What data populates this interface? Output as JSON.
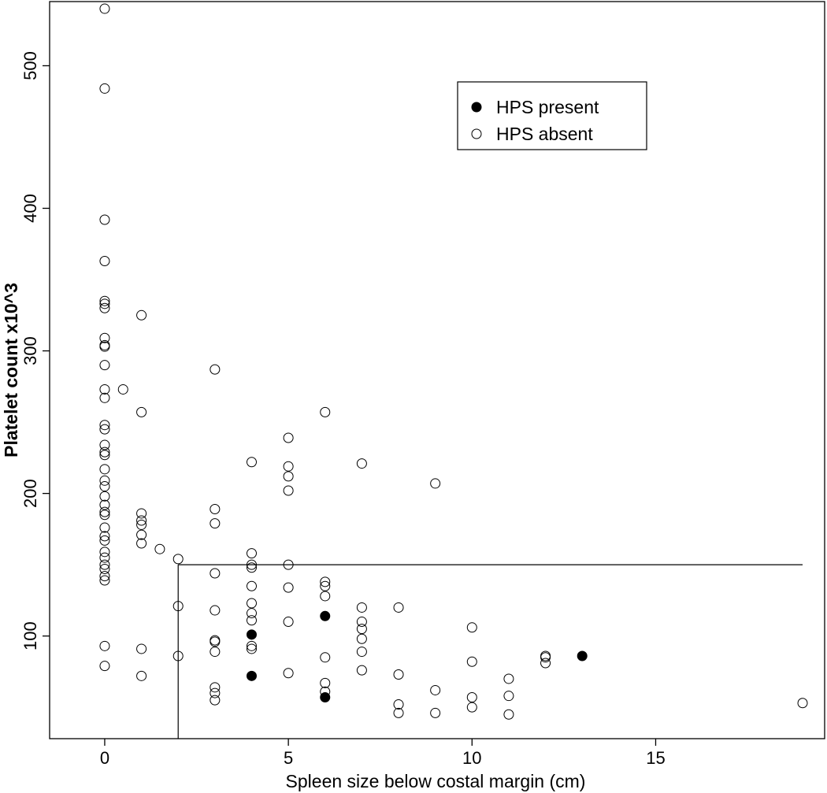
{
  "chart_data": {
    "type": "scatter",
    "xlabel": "Spleen size below costal margin (cm)",
    "ylabel": "Platelet count x10^3",
    "xlim": [
      -1.5,
      19.6
    ],
    "ylim": [
      28,
      545
    ],
    "x_ticks": [
      0,
      5,
      10,
      15
    ],
    "y_ticks": [
      100,
      200,
      300,
      400,
      500
    ],
    "grid": false,
    "legend": {
      "position": "top-right"
    },
    "reference_lines": [
      {
        "type": "horizontal",
        "y": 150,
        "x_from": 2,
        "x_to": 19
      },
      {
        "type": "vertical",
        "x": 2,
        "y_from": 28,
        "y_to": 150
      }
    ],
    "series": [
      {
        "name": "HPS present",
        "marker": "filled-circle",
        "points": [
          [
            4,
            101
          ],
          [
            4,
            72
          ],
          [
            6,
            114
          ],
          [
            6,
            57
          ],
          [
            13,
            86
          ]
        ]
      },
      {
        "name": "HPS absent",
        "marker": "open-circle",
        "points": [
          [
            0,
            540
          ],
          [
            0,
            484
          ],
          [
            0,
            392
          ],
          [
            0,
            363
          ],
          [
            0,
            335
          ],
          [
            0,
            333
          ],
          [
            0,
            330
          ],
          [
            0,
            309
          ],
          [
            0,
            304
          ],
          [
            0,
            303
          ],
          [
            0,
            290
          ],
          [
            0,
            273
          ],
          [
            0,
            267
          ],
          [
            0,
            248
          ],
          [
            0,
            245
          ],
          [
            0,
            234
          ],
          [
            0,
            229
          ],
          [
            0,
            227
          ],
          [
            0,
            217
          ],
          [
            0,
            209
          ],
          [
            0,
            205
          ],
          [
            0,
            198
          ],
          [
            0,
            192
          ],
          [
            0,
            187
          ],
          [
            0,
            185
          ],
          [
            0,
            176
          ],
          [
            0,
            170
          ],
          [
            0,
            167
          ],
          [
            0,
            159
          ],
          [
            0,
            155
          ],
          [
            0,
            150
          ],
          [
            0,
            147
          ],
          [
            0,
            142
          ],
          [
            0,
            139
          ],
          [
            0,
            93
          ],
          [
            0,
            79
          ],
          [
            0.5,
            273
          ],
          [
            1,
            325
          ],
          [
            1,
            257
          ],
          [
            1,
            186
          ],
          [
            1,
            181
          ],
          [
            1,
            178
          ],
          [
            1,
            171
          ],
          [
            1,
            165
          ],
          [
            1,
            91
          ],
          [
            1,
            72
          ],
          [
            1.5,
            161
          ],
          [
            2,
            154
          ],
          [
            2,
            121
          ],
          [
            2,
            86
          ],
          [
            3,
            287
          ],
          [
            3,
            189
          ],
          [
            3,
            179
          ],
          [
            3,
            144
          ],
          [
            3,
            118
          ],
          [
            3,
            97
          ],
          [
            3,
            96
          ],
          [
            3,
            89
          ],
          [
            3,
            64
          ],
          [
            3,
            60
          ],
          [
            3,
            55
          ],
          [
            4,
            222
          ],
          [
            4,
            158
          ],
          [
            4,
            150
          ],
          [
            4,
            148
          ],
          [
            4,
            135
          ],
          [
            4,
            123
          ],
          [
            4,
            116
          ],
          [
            4,
            111
          ],
          [
            4,
            93
          ],
          [
            4,
            91
          ],
          [
            5,
            239
          ],
          [
            5,
            219
          ],
          [
            5,
            212
          ],
          [
            5,
            202
          ],
          [
            5,
            150
          ],
          [
            5,
            134
          ],
          [
            5,
            110
          ],
          [
            5,
            74
          ],
          [
            6,
            257
          ],
          [
            6,
            138
          ],
          [
            6,
            135
          ],
          [
            6,
            128
          ],
          [
            6,
            85
          ],
          [
            6,
            67
          ],
          [
            6,
            61
          ],
          [
            7,
            221
          ],
          [
            7,
            120
          ],
          [
            7,
            110
          ],
          [
            7,
            105
          ],
          [
            7,
            98
          ],
          [
            7,
            89
          ],
          [
            7,
            76
          ],
          [
            8,
            120
          ],
          [
            8,
            73
          ],
          [
            8,
            52
          ],
          [
            8,
            46
          ],
          [
            9,
            207
          ],
          [
            9,
            62
          ],
          [
            9,
            46
          ],
          [
            10,
            106
          ],
          [
            10,
            82
          ],
          [
            10,
            57
          ],
          [
            10,
            50
          ],
          [
            11,
            70
          ],
          [
            11,
            58
          ],
          [
            11,
            45
          ],
          [
            12,
            86
          ],
          [
            12,
            85
          ],
          [
            12,
            81
          ],
          [
            19,
            53
          ]
        ]
      }
    ]
  }
}
